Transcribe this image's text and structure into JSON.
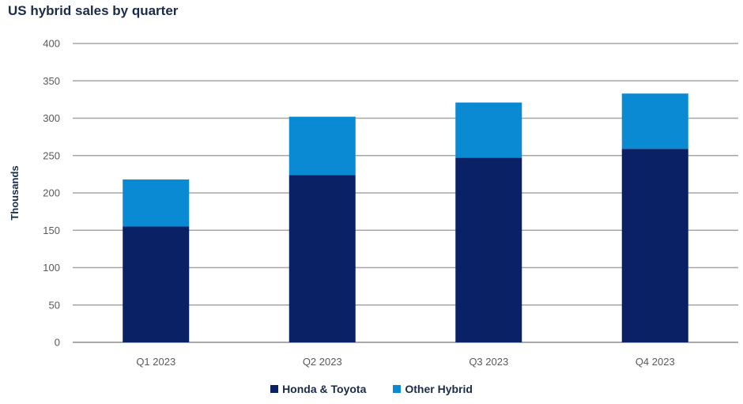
{
  "chart_data": {
    "type": "bar",
    "stacked": true,
    "title": "US hybrid sales by quarter",
    "xlabel": "",
    "ylabel": "Thousands",
    "categories": [
      "Q1 2023",
      "Q2 2023",
      "Q3 2023",
      "Q4 2023"
    ],
    "series": [
      {
        "name": "Honda & Toyota",
        "values": [
          155,
          224,
          247,
          259
        ],
        "color": "#0a2165"
      },
      {
        "name": "Other Hybrid",
        "values": [
          63,
          78,
          74,
          74
        ],
        "color": "#0a8ad2"
      }
    ],
    "ylim": [
      0,
      400
    ],
    "yticks": [
      0,
      50,
      100,
      150,
      200,
      250,
      300,
      350,
      400
    ],
    "grid": true,
    "legend_position": "bottom"
  }
}
